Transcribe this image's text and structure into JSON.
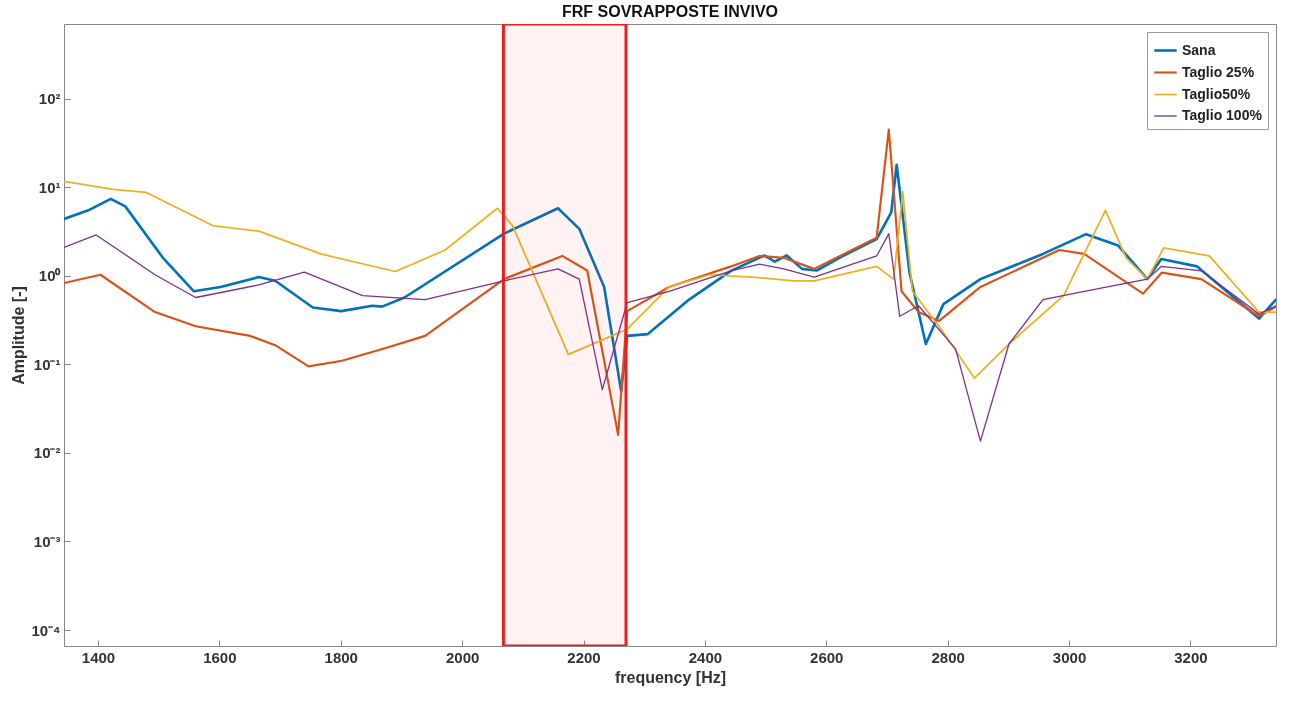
{
  "chart_data": {
    "type": "line",
    "title": "FRF SOVRAPPOSTE INVIVO",
    "xlabel": "frequency [Hz]",
    "ylabel": "Amplitude [-]",
    "log": "y",
    "grid": false,
    "legend": "top right",
    "line_style": "solid",
    "marker": "none",
    "xlim": [
      1344,
      3341
    ],
    "xticks": [
      1400,
      1600,
      1800,
      2000,
      2200,
      2400,
      2600,
      2800,
      3000,
      3200
    ],
    "ylim": [
      6.6e-05,
      700
    ],
    "yticks": [
      {
        "value": 0.0001,
        "label": "10⁻⁴"
      },
      {
        "value": 0.001,
        "label": "10⁻³"
      },
      {
        "value": 0.01,
        "label": "10⁻²"
      },
      {
        "value": 0.1,
        "label": "10⁻¹"
      },
      {
        "value": 1,
        "label": "10⁰"
      },
      {
        "value": 10,
        "label": "10¹"
      },
      {
        "value": 100,
        "label": "10²"
      }
    ],
    "bands": [
      {
        "axis": "x",
        "from": 2068,
        "to": 2270,
        "color": "#ee1c1c"
      }
    ],
    "series": [
      {
        "name": "Sana",
        "color": "#0072bd",
        "x": [
          1344,
          1384,
          1421,
          1445,
          1507,
          1558,
          1602,
          1665,
          1692,
          1754,
          1801,
          1852,
          1868,
          1905,
          2069,
          2158,
          2193,
          2234,
          2262,
          2272,
          2306,
          2374,
          2443,
          2498,
          2515,
          2535,
          2560,
          2584,
          2629,
          2683,
          2707,
          2716,
          2737,
          2764,
          2793,
          2854,
          2957,
          3028,
          3081,
          3129,
          3152,
          3211,
          3313,
          3341
        ],
        "values": [
          4.4,
          5.5,
          7.4,
          6.1,
          1.6,
          0.67,
          0.75,
          0.97,
          0.88,
          0.44,
          0.4,
          0.46,
          0.45,
          0.57,
          3.0,
          5.8,
          3.4,
          0.75,
          0.05,
          0.21,
          0.22,
          0.54,
          1.14,
          1.7,
          1.45,
          1.7,
          1.2,
          1.15,
          1.7,
          2.6,
          5.2,
          18,
          1.1,
          0.17,
          0.48,
          0.92,
          1.77,
          2.96,
          2.2,
          0.92,
          1.55,
          1.28,
          0.33,
          0.54
        ]
      },
      {
        "name": "Taglio 25%",
        "color": "#d95319",
        "x": [
          1344,
          1404,
          1494,
          1561,
          1651,
          1692,
          1747,
          1802,
          1870,
          1939,
          2069,
          2165,
          2206,
          2257,
          2272,
          2341,
          2443,
          2490,
          2530,
          2580,
          2683,
          2703,
          2714,
          2724,
          2752,
          2786,
          2854,
          2984,
          3025,
          3122,
          3153,
          3218,
          3313,
          3341
        ],
        "values": [
          0.83,
          1.03,
          0.39,
          0.27,
          0.21,
          0.165,
          0.095,
          0.11,
          0.15,
          0.21,
          0.92,
          1.68,
          1.15,
          0.016,
          0.4,
          0.75,
          1.28,
          1.68,
          1.6,
          1.2,
          2.7,
          45,
          5,
          0.67,
          0.39,
          0.31,
          0.75,
          1.96,
          1.77,
          0.63,
          1.09,
          0.92,
          0.35,
          0.45
        ]
      },
      {
        "name": "Taglio50%",
        "color": "#edb120",
        "x": [
          1344,
          1425,
          1479,
          1589,
          1665,
          1767,
          1890,
          1972,
          2058,
          2083,
          2175,
          2272,
          2341,
          2408,
          2477,
          2546,
          2580,
          2683,
          2711,
          2726,
          2742,
          2793,
          2844,
          2901,
          2991,
          3060,
          3094,
          3129,
          3156,
          3231,
          3313,
          3341
        ],
        "values": [
          11.7,
          9.5,
          8.8,
          3.7,
          3.2,
          1.77,
          1.12,
          1.96,
          5.8,
          3.7,
          0.13,
          0.25,
          0.75,
          1.03,
          0.97,
          0.88,
          0.88,
          1.28,
          0.92,
          8.9,
          0.67,
          0.23,
          0.07,
          0.17,
          0.6,
          5.5,
          1.6,
          0.92,
          2.07,
          1.68,
          0.39,
          0.39
        ]
      },
      {
        "name": "Taglio 100%",
        "color": "#7e2f8e",
        "x": [
          1344,
          1397,
          1494,
          1561,
          1665,
          1740,
          1836,
          1939,
          2069,
          2158,
          2193,
          2231,
          2272,
          2341,
          2443,
          2490,
          2530,
          2580,
          2683,
          2703,
          2721,
          2752,
          2813,
          2854,
          2901,
          2957,
          3025,
          3129,
          3152,
          3218,
          3313,
          3341
        ],
        "values": [
          2.1,
          2.9,
          1.03,
          0.57,
          0.79,
          1.1,
          0.6,
          0.54,
          0.88,
          1.2,
          0.92,
          0.052,
          0.5,
          0.67,
          1.14,
          1.36,
          1.2,
          0.97,
          1.68,
          3.0,
          0.35,
          0.46,
          0.15,
          0.0136,
          0.17,
          0.54,
          0.67,
          0.92,
          1.28,
          1.14,
          0.37,
          0.46
        ]
      }
    ]
  }
}
